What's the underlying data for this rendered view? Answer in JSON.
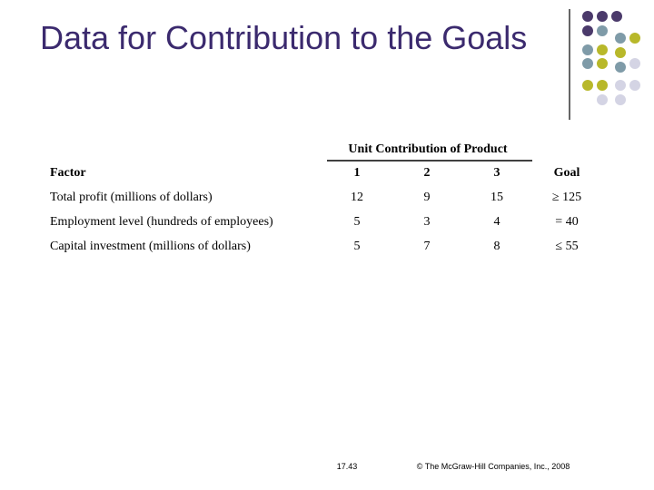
{
  "header": {
    "title": "Data for Contribution to the Goals"
  },
  "table": {
    "group_header": "Unit Contribution of Product",
    "columns": [
      "Factor",
      "1",
      "2",
      "3",
      "Goal"
    ],
    "rows": [
      [
        "Total profit (millions of dollars)",
        12,
        9,
        15,
        "≥ 125"
      ],
      [
        "Employment level (hundreds of employees)",
        5,
        3,
        4,
        "= 40"
      ],
      [
        "Capital investment (millions of dollars)",
        5,
        7,
        8,
        "≤ 55"
      ]
    ]
  },
  "footer": {
    "page": "17.43",
    "copyright": "© The McGraw-Hill Companies, Inc., 2008"
  }
}
